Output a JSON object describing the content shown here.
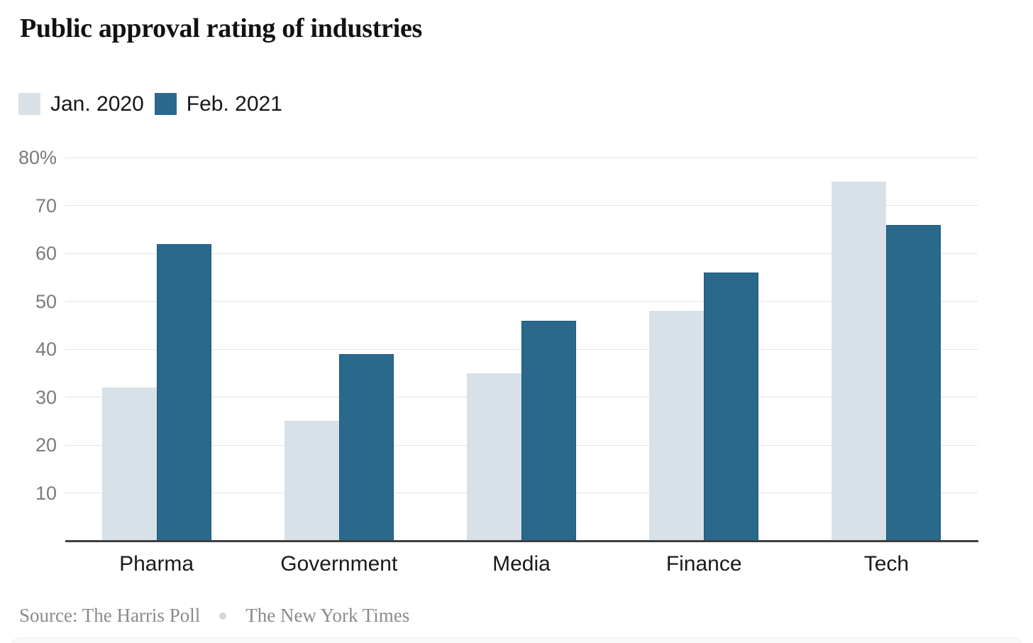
{
  "header": {
    "title": "Public approval rating of industries"
  },
  "legend": [
    {
      "label": "Jan. 2020",
      "color": "#d7e1e7"
    },
    {
      "label": "Feb. 2021",
      "color": "#2a698c"
    }
  ],
  "footer": {
    "source": "Source: The Harris Poll",
    "credit": "The New York Times"
  },
  "chart_data": {
    "type": "bar",
    "title": "Public approval rating of industries",
    "categories": [
      "Pharma",
      "Government",
      "Media",
      "Finance",
      "Tech"
    ],
    "series": [
      {
        "name": "Jan. 2020",
        "color": "#d7e1e7",
        "values": [
          32,
          25,
          35,
          48,
          75
        ]
      },
      {
        "name": "Feb. 2021",
        "color": "#2a698c",
        "border_color": "#1a5a7d",
        "values": [
          62,
          39,
          46,
          56,
          66
        ]
      }
    ],
    "unit": "%",
    "xlabel": "",
    "ylabel": "",
    "ylim": [
      0,
      80
    ],
    "yticks": [
      10,
      20,
      30,
      40,
      50,
      60,
      70,
      80
    ],
    "ytick_top_label": "80%",
    "grid": true,
    "legend_position": "top-left",
    "source": "Source: The Harris Poll",
    "credit": "The New York Times"
  }
}
